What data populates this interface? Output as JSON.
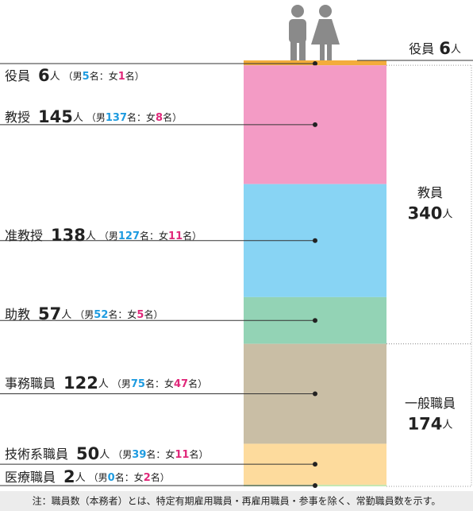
{
  "chart_data": {
    "type": "stacked-bar",
    "unit": "人",
    "male_prefix": "（男",
    "female_prefix": "名：女",
    "suffix": "名）",
    "segments": [
      {
        "name": "役員",
        "value": 6,
        "male": 5,
        "female": 1,
        "color": "#f3ac3c"
      },
      {
        "name": "教授",
        "value": 145,
        "male": 137,
        "female": 8,
        "color": "#f39bc5"
      },
      {
        "name": "准教授",
        "value": 138,
        "male": 127,
        "female": 11,
        "color": "#88d4f4"
      },
      {
        "name": "助教",
        "value": 57,
        "male": 52,
        "female": 5,
        "color": "#93d3b5"
      },
      {
        "name": "事務職員",
        "value": 122,
        "male": 75,
        "female": 47,
        "color": "#c9bea5"
      },
      {
        "name": "技術系職員",
        "value": 50,
        "male": 39,
        "female": 11,
        "color": "#fddb9d"
      },
      {
        "name": "医療職員",
        "value": 2,
        "male": 0,
        "female": 2,
        "color": "#c6e7b2"
      }
    ],
    "groups": [
      {
        "name": "教員",
        "value": 340
      },
      {
        "name": "一般職員",
        "value": 174
      }
    ],
    "note": "注：職員数（本務者）とは、特定有期雇用職員・再雇用職員・参事を除く、常勤職員数を示す。"
  }
}
